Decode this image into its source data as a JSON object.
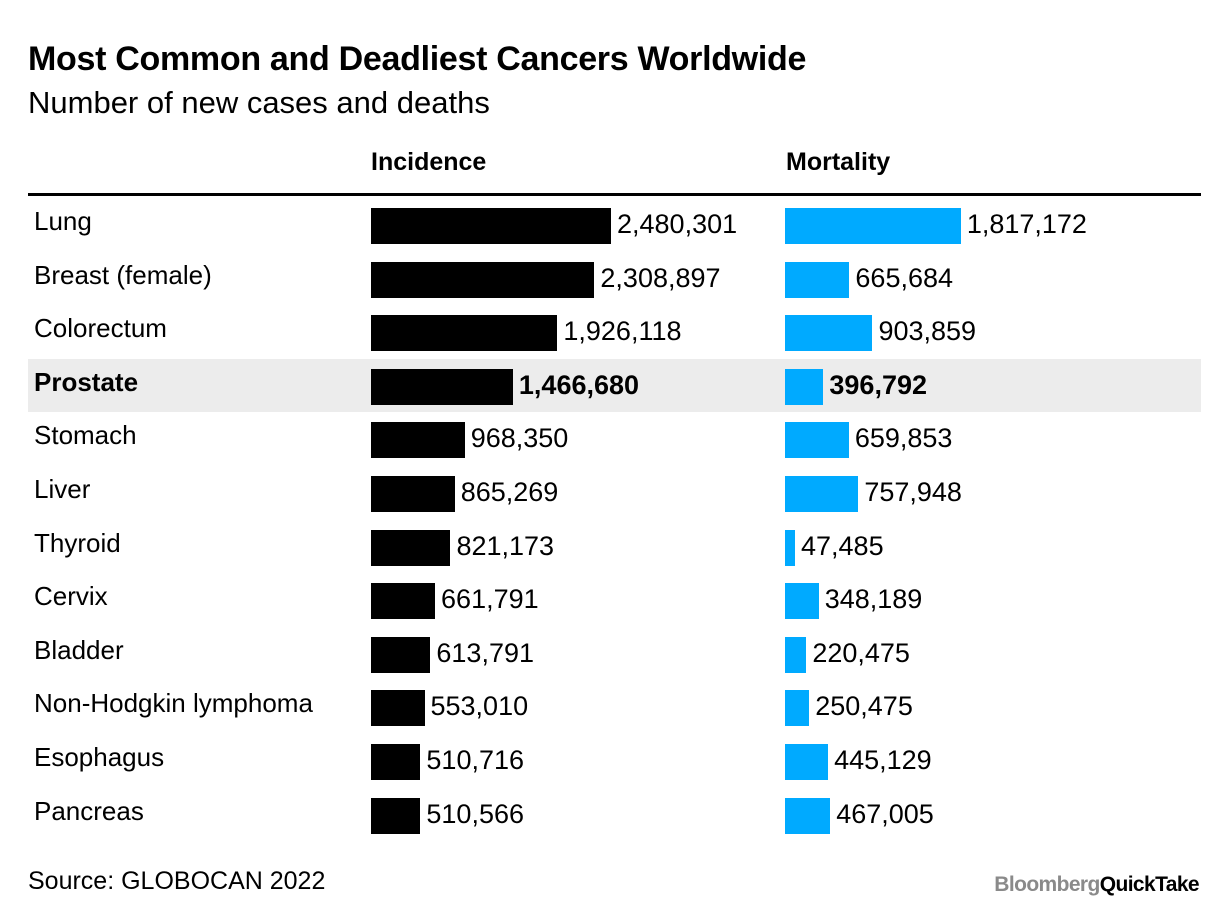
{
  "chart_data": {
    "type": "bar",
    "title": "Most Common and Deadliest Cancers Worldwide",
    "subtitle": "Number of new cases and deaths",
    "categories": [
      "Lung",
      "Breast (female)",
      "Colorectum",
      "Prostate",
      "Stomach",
      "Liver",
      "Thyroid",
      "Cervix",
      "Bladder",
      "Non-Hodgkin lymphoma",
      "Esophagus",
      "Pancreas"
    ],
    "highlighted_category": "Prostate",
    "series": [
      {
        "name": "Incidence",
        "color": "#000000",
        "values": [
          2480301,
          2308897,
          1926118,
          1466680,
          968350,
          865269,
          821173,
          661791,
          613791,
          553010,
          510716,
          510566
        ],
        "labels": [
          "2,480,301",
          "2,308,897",
          "1,926,118",
          "1,466,680",
          "968,350",
          "865,269",
          "821,173",
          "661,791",
          "613,791",
          "553,010",
          "510,716",
          "510,566"
        ]
      },
      {
        "name": "Mortality",
        "color": "#00aaff",
        "values": [
          1817172,
          665684,
          903859,
          396792,
          659853,
          757948,
          47485,
          348189,
          220475,
          250475,
          445129,
          467005
        ],
        "labels": [
          "1,817,172",
          "665,684",
          "903,859",
          "396,792",
          "659,853",
          "757,948",
          "47,485",
          "348,189",
          "220,475",
          "250,475",
          "445,129",
          "467,005"
        ]
      }
    ],
    "source": "Source: GLOBOCAN 2022"
  },
  "logo": {
    "part1": "Bloomberg",
    "part2": "QuickTake"
  }
}
